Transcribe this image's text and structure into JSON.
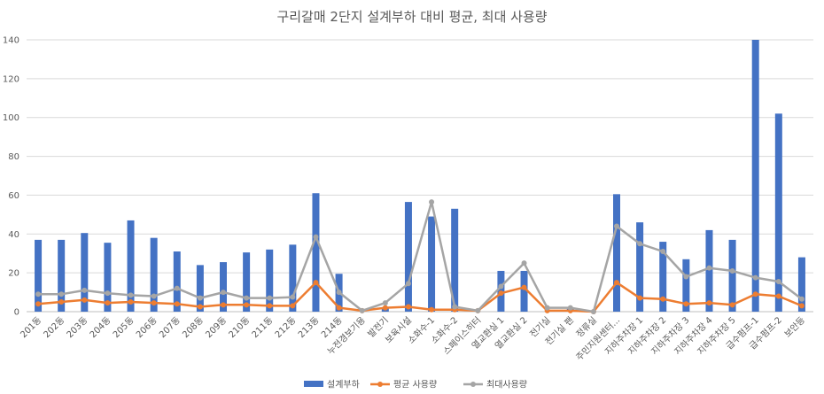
{
  "chart_data": {
    "type": "bar",
    "title": "구리갈매 2단지 설계부하 대비 평균, 최대 사용량",
    "ylim": [
      0,
      140
    ],
    "yticks": [
      0,
      20,
      40,
      60,
      80,
      100,
      120,
      140
    ],
    "grid": true,
    "legend_position": "bottom",
    "categories": [
      "201동",
      "202동",
      "203동",
      "204동",
      "205동",
      "206동",
      "207동",
      "208동",
      "209동",
      "210동",
      "211동",
      "212동",
      "213동",
      "214동",
      "누전경보기용",
      "발전기",
      "보육시설",
      "소화수-1",
      "소화수-2",
      "스페이스히터",
      "열교환실 1",
      "열교환실 2",
      "전기실",
      "전기실 팬",
      "정류실",
      "주민지원센터...",
      "지하주차장 1",
      "지하주차장 2",
      "지하주차장 3",
      "지하주차장 4",
      "지하주차장 5",
      "급수펌프-1",
      "급수펌프-2",
      "보안등"
    ],
    "series": [
      {
        "name": "설계부하",
        "kind": "bar",
        "color": "#4472C4",
        "values": [
          37,
          37,
          40.5,
          35.5,
          47,
          38,
          31,
          24,
          25.5,
          30.5,
          32,
          34.5,
          61,
          19.5,
          0,
          2,
          56.5,
          49,
          53,
          0,
          21,
          21,
          0,
          1.5,
          0,
          60.5,
          46,
          36,
          27,
          42,
          37,
          140,
          102,
          28
        ]
      },
      {
        "name": "평균 사용량",
        "kind": "line",
        "color": "#ED7D31",
        "values": [
          4,
          5,
          6,
          4.5,
          5,
          4.5,
          4,
          2.5,
          3.5,
          3.5,
          3,
          3,
          15,
          2,
          0.5,
          2,
          2.5,
          1,
          1,
          0.5,
          9.5,
          12.5,
          0.5,
          0.5,
          0,
          15,
          7,
          6.5,
          4,
          4.5,
          3.5,
          9,
          8,
          3
        ]
      },
      {
        "name": "최대사용량",
        "kind": "line",
        "color": "#A5A5A5",
        "values": [
          9,
          9,
          11,
          9.5,
          8.5,
          8,
          12,
          7,
          10,
          7,
          7,
          7.5,
          38.5,
          10,
          0.5,
          4.5,
          14.5,
          56.5,
          2.5,
          0.5,
          13,
          25,
          2,
          2,
          0,
          44,
          35,
          31,
          18,
          22.5,
          21,
          17.5,
          15.5,
          6.5
        ]
      }
    ]
  }
}
